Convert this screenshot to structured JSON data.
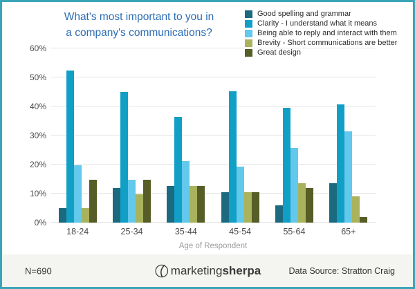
{
  "title": {
    "line1": "What's most important to you in",
    "line2": "a company's communications?",
    "color": "#2a6cb4"
  },
  "footer": {
    "sample_size": "N=690",
    "logo_prefix": "marketing",
    "logo_suffix": "sherpa",
    "data_source": "Data Source: Stratton Craig"
  },
  "chart_data": {
    "type": "bar",
    "title": "What's most important to you in a company's communications?",
    "categories": [
      "18-24",
      "25-34",
      "35-44",
      "45-54",
      "55-64",
      "65+"
    ],
    "series": [
      {
        "name": "Good spelling and grammar",
        "color": "#1b6a80",
        "values": [
          5,
          12,
          12.7,
          10.5,
          6,
          13.5
        ]
      },
      {
        "name": "Clarity - I understand what it means",
        "color": "#129fc6",
        "values": [
          52.5,
          45,
          36.5,
          45.3,
          39.5,
          40.7
        ]
      },
      {
        "name": "Being able to reply and interact with them",
        "color": "#62c8ec",
        "values": [
          19.7,
          14.7,
          21.3,
          19.2,
          25.7,
          31.5
        ]
      },
      {
        "name": "Brevity - Short communications are better",
        "color": "#a9b25c",
        "values": [
          5,
          9.7,
          12.7,
          10.5,
          13.5,
          9
        ]
      },
      {
        "name": "Great design",
        "color": "#565d26",
        "values": [
          14.8,
          14.8,
          12.7,
          10.5,
          12,
          2
        ]
      }
    ],
    "xlabel": "Age of Respondent",
    "ylabel": "",
    "ylim": [
      0,
      60
    ],
    "yticks": [
      0,
      10,
      20,
      30,
      40,
      50,
      60
    ],
    "ytick_suffix": "%",
    "grid": "horizontal",
    "legend_position": "top-right"
  }
}
